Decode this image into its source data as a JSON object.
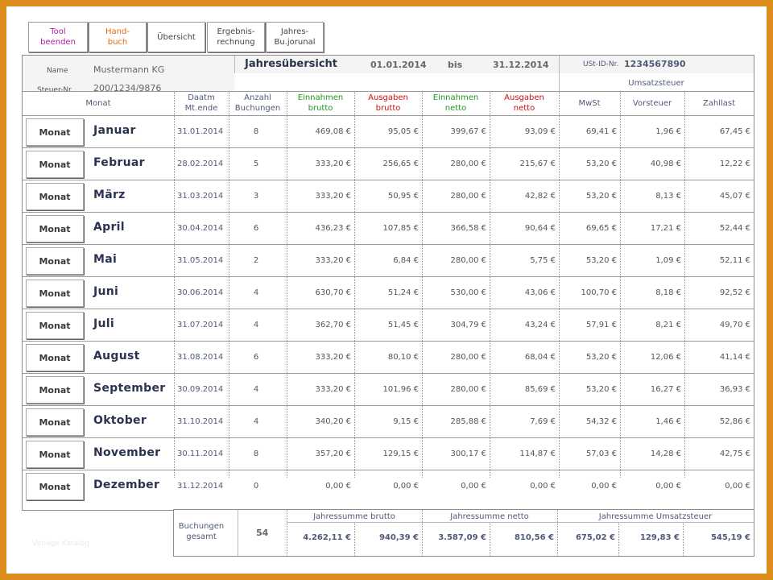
{
  "toolbar": {
    "buttons": [
      {
        "label_line1": "Tool",
        "label_line2": "beenden",
        "color": "#b01eb0"
      },
      {
        "label_line1": "Hand-",
        "label_line2": "buch",
        "color": "#e06a10"
      },
      {
        "label_line1": "Übersicht",
        "label_line2": "",
        "color": "#444444"
      },
      {
        "label_line1": "Ergebnis-",
        "label_line2": "rechnung",
        "color": "#444444"
      },
      {
        "label_line1": "Jahres-",
        "label_line2": "Bu.jorunal",
        "color": "#444444"
      }
    ]
  },
  "header": {
    "name_label": "Name",
    "name_value": "Mustermann KG",
    "tax_label": "Steuer-Nr.",
    "tax_value": "200/1234/9876",
    "title": "Jahresübersicht",
    "date_from": "01.01.2014",
    "bis_label": "bis",
    "date_to": "31.12.2014",
    "ust_label": "USt-ID-Nr.",
    "ust_value": "1234567890",
    "umsatzsteuer_label": "Umsatzsteuer"
  },
  "columns": {
    "monat": "Monat",
    "datum_l1": "Daatm",
    "datum_l2": "Mt.ende",
    "anzahl_l1": "Anzahl",
    "anzahl_l2": "Buchungen",
    "ein_brutto_l1": "Einnahmen",
    "ein_brutto_l2": "brutto",
    "aus_brutto_l1": "Ausgaben",
    "aus_brutto_l2": "brutto",
    "ein_netto_l1": "Einnahmen",
    "ein_netto_l2": "netto",
    "aus_netto_l1": "Ausgaben",
    "aus_netto_l2": "netto",
    "mwst": "MwSt",
    "vorsteuer": "Vorsteuer",
    "zahllast": "Zahllast"
  },
  "rows": [
    {
      "btn": "Monat",
      "month": "Januar",
      "date": "31.01.2014",
      "count": "8",
      "ein_b": "469,08 €",
      "aus_b": "95,05 €",
      "ein_n": "399,67 €",
      "aus_n": "93,09 €",
      "mwst": "69,41 €",
      "vst": "1,96 €",
      "zl": "67,45 €"
    },
    {
      "btn": "Monat",
      "month": "Februar",
      "date": "28.02.2014",
      "count": "5",
      "ein_b": "333,20 €",
      "aus_b": "256,65 €",
      "ein_n": "280,00 €",
      "aus_n": "215,67 €",
      "mwst": "53,20 €",
      "vst": "40,98 €",
      "zl": "12,22 €"
    },
    {
      "btn": "Monat",
      "month": "März",
      "date": "31.03.2014",
      "count": "3",
      "ein_b": "333,20 €",
      "aus_b": "50,95 €",
      "ein_n": "280,00 €",
      "aus_n": "42,82 €",
      "mwst": "53,20 €",
      "vst": "8,13 €",
      "zl": "45,07 €"
    },
    {
      "btn": "Monat",
      "month": "April",
      "date": "30.04.2014",
      "count": "6",
      "ein_b": "436,23 €",
      "aus_b": "107,85 €",
      "ein_n": "366,58 €",
      "aus_n": "90,64 €",
      "mwst": "69,65 €",
      "vst": "17,21 €",
      "zl": "52,44 €"
    },
    {
      "btn": "Monat",
      "month": "Mai",
      "date": "31.05.2014",
      "count": "2",
      "ein_b": "333,20 €",
      "aus_b": "6,84 €",
      "ein_n": "280,00 €",
      "aus_n": "5,75 €",
      "mwst": "53,20 €",
      "vst": "1,09 €",
      "zl": "52,11 €"
    },
    {
      "btn": "Monat",
      "month": "Juni",
      "date": "30.06.2014",
      "count": "4",
      "ein_b": "630,70 €",
      "aus_b": "51,24 €",
      "ein_n": "530,00 €",
      "aus_n": "43,06 €",
      "mwst": "100,70 €",
      "vst": "8,18 €",
      "zl": "92,52 €"
    },
    {
      "btn": "Monat",
      "month": "Juli",
      "date": "31.07.2014",
      "count": "4",
      "ein_b": "362,70 €",
      "aus_b": "51,45 €",
      "ein_n": "304,79 €",
      "aus_n": "43,24 €",
      "mwst": "57,91 €",
      "vst": "8,21 €",
      "zl": "49,70 €"
    },
    {
      "btn": "Monat",
      "month": "August",
      "date": "31.08.2014",
      "count": "6",
      "ein_b": "333,20 €",
      "aus_b": "80,10 €",
      "ein_n": "280,00 €",
      "aus_n": "68,04 €",
      "mwst": "53,20 €",
      "vst": "12,06 €",
      "zl": "41,14 €"
    },
    {
      "btn": "Monat",
      "month": "September",
      "date": "30.09.2014",
      "count": "4",
      "ein_b": "333,20 €",
      "aus_b": "101,96 €",
      "ein_n": "280,00 €",
      "aus_n": "85,69 €",
      "mwst": "53,20 €",
      "vst": "16,27 €",
      "zl": "36,93 €"
    },
    {
      "btn": "Monat",
      "month": "Oktober",
      "date": "31.10.2014",
      "count": "4",
      "ein_b": "340,20 €",
      "aus_b": "9,15 €",
      "ein_n": "285,88 €",
      "aus_n": "7,69 €",
      "mwst": "54,32 €",
      "vst": "1,46 €",
      "zl": "52,86 €"
    },
    {
      "btn": "Monat",
      "month": "November",
      "date": "30.11.2014",
      "count": "8",
      "ein_b": "357,20 €",
      "aus_b": "129,15 €",
      "ein_n": "300,17 €",
      "aus_n": "114,87 €",
      "mwst": "57,03 €",
      "vst": "14,28 €",
      "zl": "42,75 €"
    },
    {
      "btn": "Monat",
      "month": "Dezember",
      "date": "31.12.2014",
      "count": "0",
      "ein_b": "0,00 €",
      "aus_b": "0,00 €",
      "ein_n": "0,00 €",
      "aus_n": "0,00 €",
      "mwst": "0,00 €",
      "vst": "0,00 €",
      "zl": "0,00 €"
    }
  ],
  "footer": {
    "buchungen_l1": "Buchungen",
    "buchungen_l2": "gesamt",
    "buchungen_total": "54",
    "sum_brutto_label": "Jahressumme brutto",
    "sum_netto_label": "Jahressumme netto",
    "sum_ust_label": "Jahressumme Umsatzsteuer",
    "ein_b": "4.262,11 €",
    "aus_b": "940,39 €",
    "ein_n": "3.587,09 €",
    "aus_n": "810,56 €",
    "mwst": "675,02 €",
    "vst": "129,83 €",
    "zl": "545,19 €"
  },
  "watermark": "Vorlage Katalog"
}
